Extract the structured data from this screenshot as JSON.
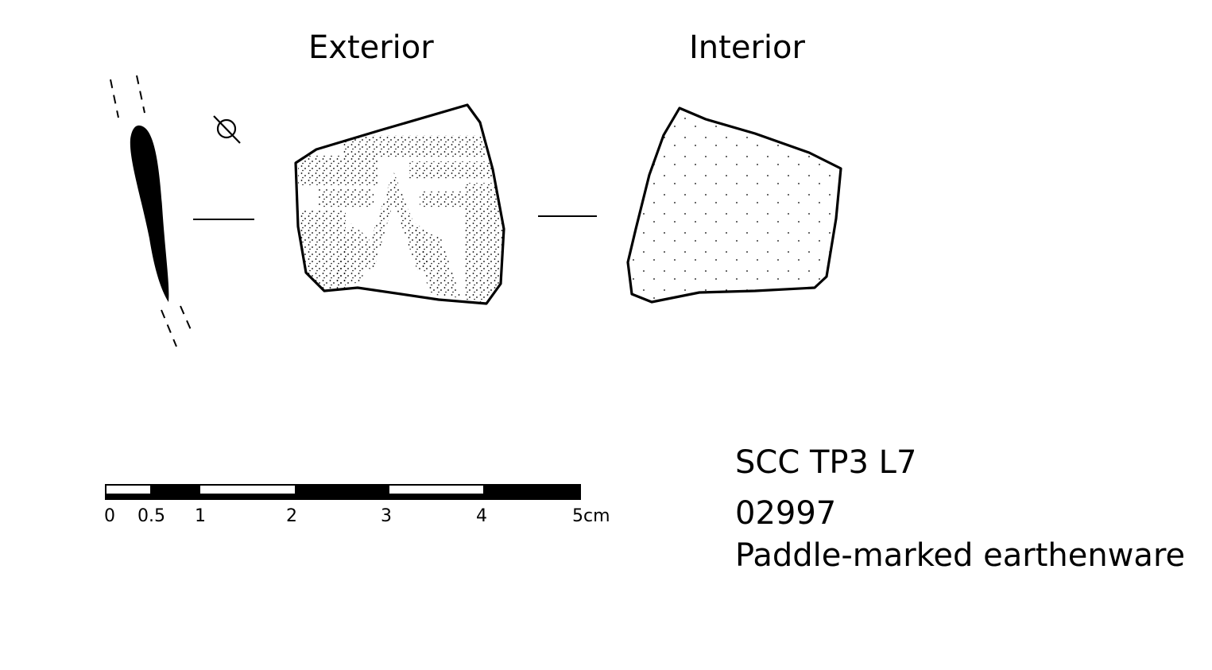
{
  "views": {
    "exterior_label": "Exterior",
    "interior_label": "Interior"
  },
  "symbols": {
    "diameter_symbol": "Ø"
  },
  "scale_bar": {
    "ticks": [
      "0",
      "0.5",
      "1",
      "2",
      "3",
      "4",
      "5cm"
    ]
  },
  "info": {
    "site_context": "SCC TP3 L7",
    "catalog_number": "02997",
    "description": "Paddle-marked earthenware"
  },
  "colors": {
    "ink": "#000000",
    "paper": "#ffffff"
  }
}
